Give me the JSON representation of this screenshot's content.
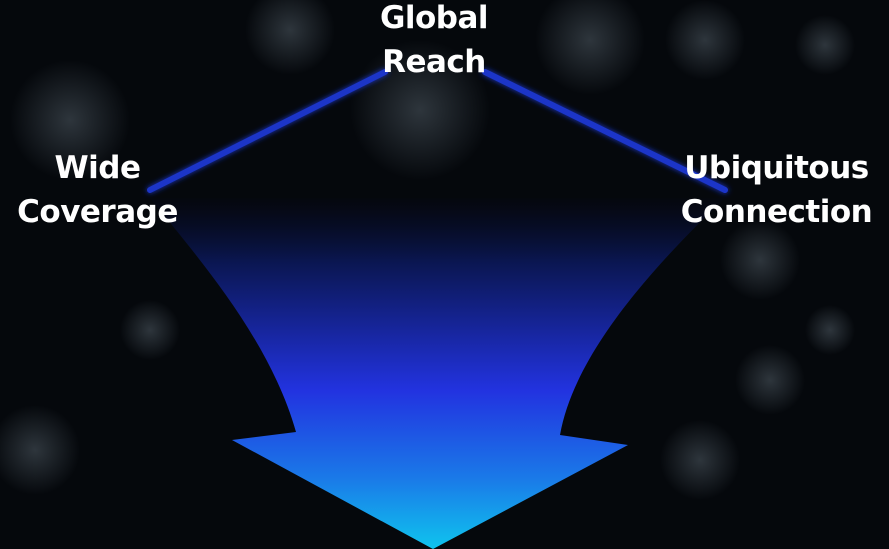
{
  "nodes": {
    "top": {
      "line1": "Global",
      "line2": "Reach"
    },
    "left": {
      "line1": "Wide",
      "line2": "Coverage"
    },
    "right": {
      "line1": "Ubiquitous",
      "line2": "Connection"
    }
  },
  "colors": {
    "background": "#05080c",
    "triangle_edge": "#1a3fd8",
    "arrow_top": "#06103a",
    "arrow_mid": "#2233e0",
    "arrow_bottom": "#0fb8ea",
    "text": "#ffffff"
  }
}
